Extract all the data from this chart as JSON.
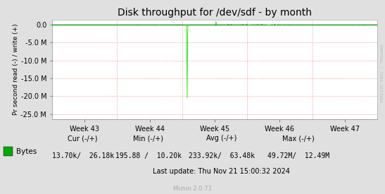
{
  "title": "Disk throughput for /dev/sdf - by month",
  "ylabel": "Pr second read (-) / write (+)",
  "xlabel_ticks": [
    "Week 43",
    "Week 44",
    "Week 45",
    "Week 46",
    "Week 47"
  ],
  "ylim": [
    -26500000,
    1500000
  ],
  "yticks": [
    0,
    -5000000,
    -10000000,
    -15000000,
    -20000000,
    -25000000
  ],
  "bg_color": "#e0e0e0",
  "plot_bg_color": "#ffffff",
  "line_color": "#00ee00",
  "watermark": "RRDTOOL / TOBI OETIKER",
  "legend_label": "Bytes",
  "legend_color": "#00aa00",
  "footer_cur_hdr": "Cur (-/+)",
  "footer_cur_val": "13.70k/  26.18k",
  "footer_min_hdr": "Min (-/+)",
  "footer_min_val": "195.88 /  10.20k",
  "footer_avg_hdr": "Avg (-/+)",
  "footer_avg_val": "233.92k/  63.48k",
  "footer_max_hdr": "Max (-/+)",
  "footer_max_val": "49.72M/  12.49M",
  "footer_update": "Last update: Thu Nov 21 15:00:32 2024",
  "munin_version": "Munin 2.0.73",
  "num_points": 800
}
